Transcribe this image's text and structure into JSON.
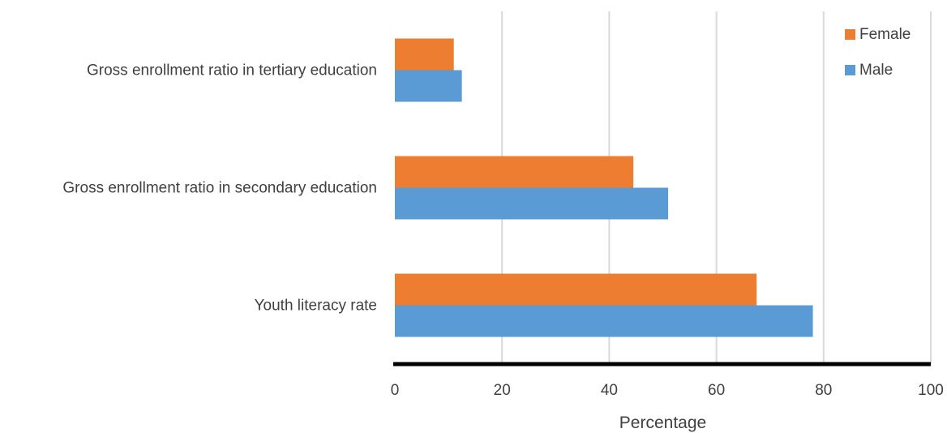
{
  "chart_data": {
    "type": "bar",
    "orientation": "horizontal",
    "categories": [
      "Gross enrollment ratio in tertiary education",
      "Gross enrollment ratio in secondary education",
      "Youth literacy rate"
    ],
    "series": [
      {
        "name": "Female",
        "color": "#ED7D31",
        "values": [
          11,
          44.5,
          67.5
        ]
      },
      {
        "name": "Male",
        "color": "#5B9BD5",
        "values": [
          12.5,
          51,
          78
        ]
      }
    ],
    "xlabel": "Percentage",
    "ylabel": "",
    "xlim": [
      0,
      100
    ],
    "xticks": [
      0,
      20,
      40,
      60,
      80,
      100
    ],
    "grid": "vertical",
    "legend_position": "top-right"
  }
}
